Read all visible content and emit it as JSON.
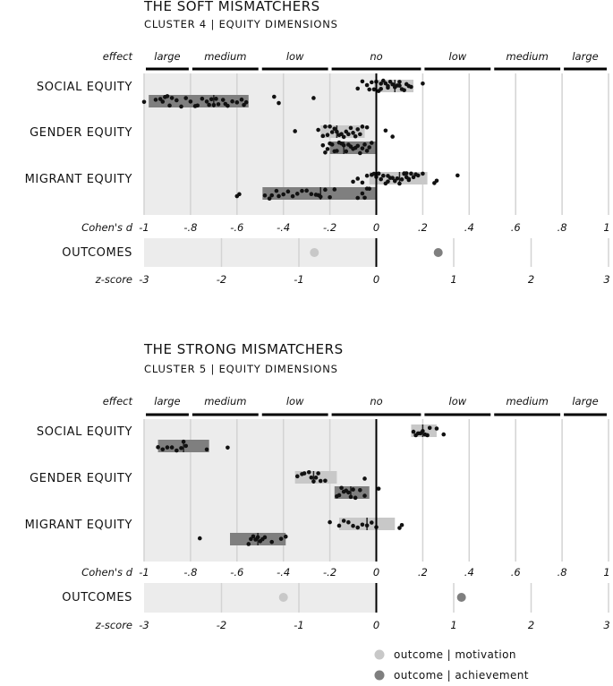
{
  "chart_data": [
    {
      "type": "dot-strip",
      "title": "THE SOFT MISMATCHERS",
      "subtitle": "CLUSTER 4 | EQUITY DIMENSIONS",
      "effect_label": "effect",
      "effect_bands": [
        "large",
        "medium",
        "low",
        "no",
        "low",
        "medium",
        "large"
      ],
      "effect_breaks": [
        -1,
        -0.8,
        -0.5,
        -0.2,
        0.2,
        0.5,
        0.8,
        1
      ],
      "x_axis_label": "Cohen's d",
      "x_ticks": [
        "-1",
        "-.8",
        "-.6",
        "-.4",
        "-.2",
        "0",
        ".2",
        ".4",
        ".6",
        ".8",
        "1"
      ],
      "xlim": [
        -1,
        1
      ],
      "categories": [
        "SOCIAL EQUITY",
        "GENDER EQUITY",
        "MIGRANT EQUITY"
      ],
      "rows": [
        {
          "category": "SOCIAL EQUITY",
          "outcome": "motivation",
          "mean": 0.08,
          "range": [
            -0.01,
            0.16
          ],
          "points": [
            -0.08,
            -0.06,
            -0.04,
            -0.03,
            -0.02,
            -0.01,
            0.0,
            0.01,
            0.02,
            0.02,
            0.03,
            0.04,
            0.05,
            0.05,
            0.06,
            0.07,
            0.08,
            0.09,
            0.1,
            0.1,
            0.11,
            0.12,
            0.13,
            0.14,
            0.15,
            0.2
          ]
        },
        {
          "category": "SOCIAL EQUITY",
          "outcome": "achievement",
          "mean": -0.7,
          "range": [
            -0.98,
            -0.55
          ],
          "points": [
            -1.0,
            -0.95,
            -0.93,
            -0.92,
            -0.91,
            -0.9,
            -0.89,
            -0.88,
            -0.86,
            -0.84,
            -0.82,
            -0.8,
            -0.78,
            -0.77,
            -0.75,
            -0.73,
            -0.72,
            -0.71,
            -0.7,
            -0.69,
            -0.68,
            -0.66,
            -0.65,
            -0.64,
            -0.62,
            -0.6,
            -0.58,
            -0.57,
            -0.56,
            -0.44,
            -0.42,
            -0.27
          ]
        },
        {
          "category": "GENDER EQUITY",
          "outcome": "motivation",
          "mean": -0.17,
          "range": [
            -0.24,
            -0.05
          ],
          "points": [
            -0.35,
            -0.25,
            -0.23,
            -0.22,
            -0.21,
            -0.2,
            -0.19,
            -0.18,
            -0.17,
            -0.16,
            -0.15,
            -0.14,
            -0.13,
            -0.12,
            -0.11,
            -0.1,
            -0.09,
            -0.08,
            -0.07,
            -0.06,
            -0.04,
            0.04,
            0.07
          ]
        },
        {
          "category": "GENDER EQUITY",
          "outcome": "achievement",
          "mean": -0.14,
          "range": [
            -0.2,
            0.0
          ],
          "points": [
            -0.23,
            -0.22,
            -0.21,
            -0.2,
            -0.19,
            -0.18,
            -0.17,
            -0.16,
            -0.15,
            -0.14,
            -0.13,
            -0.12,
            -0.11,
            -0.1,
            -0.09,
            -0.08,
            -0.07,
            -0.06,
            -0.05,
            -0.04,
            -0.03,
            -0.02
          ]
        },
        {
          "category": "MIGRANT EQUITY",
          "outcome": "motivation",
          "mean": 0.1,
          "range": [
            -0.03,
            0.22
          ],
          "points": [
            -0.1,
            -0.08,
            -0.06,
            -0.04,
            -0.02,
            -0.01,
            0.0,
            0.01,
            0.02,
            0.03,
            0.04,
            0.05,
            0.06,
            0.07,
            0.08,
            0.09,
            0.1,
            0.11,
            0.12,
            0.13,
            0.14,
            0.15,
            0.16,
            0.17,
            0.18,
            0.2,
            0.26,
            0.35,
            0.05,
            0.12,
            0.13,
            0.14,
            0.25
          ]
        },
        {
          "category": "MIGRANT EQUITY",
          "outcome": "achievement",
          "mean": -0.24,
          "range": [
            -0.49,
            0.0
          ],
          "points": [
            -0.6,
            -0.59,
            -0.48,
            -0.46,
            -0.45,
            -0.43,
            -0.42,
            -0.4,
            -0.38,
            -0.36,
            -0.34,
            -0.32,
            -0.3,
            -0.28,
            -0.26,
            -0.25,
            -0.24,
            -0.22,
            -0.2,
            -0.18,
            -0.08,
            -0.06,
            -0.05,
            -0.04,
            -0.03
          ]
        }
      ],
      "outcomes": {
        "label": "OUTCOMES",
        "axis_label": "z-score",
        "z_ticks": [
          "-3",
          "-2",
          "-1",
          "0",
          "1",
          "2",
          "3"
        ],
        "zlim": [
          -3,
          3
        ],
        "motivation_z": -0.8,
        "achievement_z": 0.8
      }
    },
    {
      "type": "dot-strip",
      "title": "THE STRONG MISMATCHERS",
      "subtitle": "CLUSTER 5 | EQUITY DIMENSIONS",
      "effect_label": "effect",
      "effect_bands": [
        "large",
        "medium",
        "low",
        "no",
        "low",
        "medium",
        "large"
      ],
      "effect_breaks": [
        -1,
        -0.8,
        -0.5,
        -0.2,
        0.2,
        0.5,
        0.8,
        1
      ],
      "x_axis_label": "Cohen's d",
      "x_ticks": [
        "-1",
        "-.8",
        "-.6",
        "-.4",
        "-.2",
        "0",
        ".2",
        ".4",
        ".6",
        ".8",
        "1"
      ],
      "xlim": [
        -1,
        1
      ],
      "categories": [
        "SOCIAL EQUITY",
        "GENDER EQUITY",
        "MIGRANT EQUITY"
      ],
      "rows": [
        {
          "category": "SOCIAL EQUITY",
          "outcome": "motivation",
          "mean": 0.2,
          "range": [
            0.15,
            0.26
          ],
          "points": [
            0.16,
            0.17,
            0.18,
            0.19,
            0.2,
            0.21,
            0.22,
            0.23,
            0.26,
            0.29
          ]
        },
        {
          "category": "SOCIAL EQUITY",
          "outcome": "achievement",
          "mean": -0.83,
          "range": [
            -0.94,
            -0.72
          ],
          "points": [
            -0.94,
            -0.92,
            -0.9,
            -0.88,
            -0.86,
            -0.84,
            -0.83,
            -0.82,
            -0.73,
            -0.64
          ]
        },
        {
          "category": "GENDER EQUITY",
          "outcome": "motivation",
          "mean": -0.27,
          "range": [
            -0.35,
            -0.17
          ],
          "points": [
            -0.34,
            -0.32,
            -0.31,
            -0.29,
            -0.28,
            -0.27,
            -0.26,
            -0.25,
            -0.24,
            -0.22,
            -0.05
          ]
        },
        {
          "category": "GENDER EQUITY",
          "outcome": "achievement",
          "mean": -0.11,
          "range": [
            -0.18,
            -0.03
          ],
          "points": [
            -0.17,
            -0.16,
            -0.15,
            -0.14,
            -0.13,
            -0.12,
            -0.11,
            -0.1,
            -0.09,
            -0.07,
            -0.05,
            0.01
          ]
        },
        {
          "category": "MIGRANT EQUITY",
          "outcome": "motivation",
          "mean": -0.04,
          "range": [
            -0.16,
            0.08
          ],
          "points": [
            -0.2,
            -0.16,
            -0.14,
            -0.12,
            -0.1,
            -0.08,
            -0.06,
            -0.04,
            -0.02,
            0.0,
            0.1,
            0.11
          ]
        },
        {
          "category": "MIGRANT EQUITY",
          "outcome": "achievement",
          "mean": -0.51,
          "range": [
            -0.63,
            -0.39
          ],
          "points": [
            -0.76,
            -0.55,
            -0.54,
            -0.53,
            -0.52,
            -0.51,
            -0.5,
            -0.49,
            -0.48,
            -0.45,
            -0.41,
            -0.39
          ]
        }
      ],
      "outcomes": {
        "label": "OUTCOMES",
        "axis_label": "z-score",
        "z_ticks": [
          "-3",
          "-2",
          "-1",
          "0",
          "1",
          "2",
          "3"
        ],
        "zlim": [
          -3,
          3
        ],
        "motivation_z": -1.2,
        "achievement_z": 1.1
      }
    }
  ],
  "legend": [
    {
      "label": "outcome | motivation",
      "color": "#c8c8c8"
    },
    {
      "label": "outcome | achievement",
      "color": "#7f7f7f"
    }
  ],
  "colors": {
    "panel_bg": "#ececec",
    "motivation_bar": "#c8c8c8",
    "achievement_bar": "#7f7f7f",
    "grid": "#d3d3d3",
    "dot": "#111111"
  }
}
